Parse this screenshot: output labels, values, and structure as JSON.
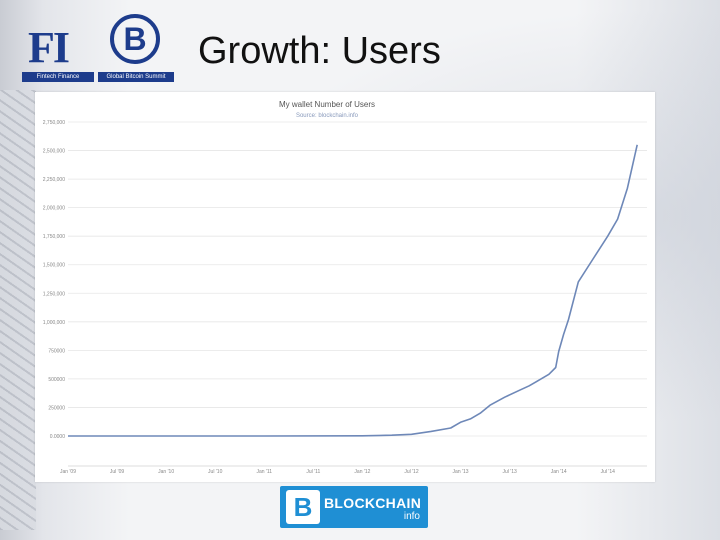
{
  "slide": {
    "title": "Growth: Users",
    "logo_left_text": "FI",
    "logo_left_caption": "Fintech Finance",
    "logo_mid_symbol": "B",
    "logo_mid_caption": "Global Bitcoin Summit",
    "footer_logo_name": "BLOCKCHAIN",
    "footer_logo_sub": "info"
  },
  "chart_data": {
    "type": "line",
    "title": "My wallet Number of Users",
    "subtitle": "Source: blockchain.info",
    "xlabel": "",
    "ylabel": "",
    "y_tick_labels": [
      "0.0000",
      "250000",
      "500000",
      "750000",
      "1,000,000",
      "1,250,000",
      "1,500,000",
      "1,750,000",
      "2,000,000",
      "2,250,000",
      "2,500,000",
      "2,750,000"
    ],
    "y_tick_values": [
      0,
      250000,
      500000,
      750000,
      1000000,
      1250000,
      1500000,
      1750000,
      2000000,
      2250000,
      2500000,
      2750000
    ],
    "x_tick_labels": [
      "Jan '09",
      "Jul '09",
      "Jan '10",
      "Jul '10",
      "Jan '11",
      "Jul '11",
      "Jan '12",
      "Jul '12",
      "Jan '13",
      "Jul '13",
      "Jan '14",
      "Jul '14"
    ],
    "x_tick_values": [
      2009.0,
      2009.5,
      2010.0,
      2010.5,
      2011.0,
      2011.5,
      2012.0,
      2012.5,
      2013.0,
      2013.5,
      2014.0,
      2014.5
    ],
    "xlim": [
      2009.0,
      2014.9
    ],
    "ylim": [
      0,
      2750000
    ],
    "grid": true,
    "color": "#6e88b8",
    "series": [
      {
        "x": [
          2009.0,
          2011.0,
          2012.0,
          2012.3,
          2012.5,
          2012.7,
          2012.9,
          2013.0,
          2013.1,
          2013.2,
          2013.3,
          2013.45,
          2013.6,
          2013.7,
          2013.8,
          2013.9,
          2013.97,
          2014.0,
          2014.05,
          2014.1,
          2014.2,
          2014.35,
          2014.5,
          2014.6,
          2014.7,
          2014.8
        ],
        "y": [
          0,
          0,
          2000,
          7000,
          15000,
          40000,
          70000,
          120000,
          150000,
          200000,
          270000,
          340000,
          400000,
          440000,
          490000,
          540000,
          600000,
          740000,
          890000,
          1020000,
          1350000,
          1550000,
          1750000,
          1900000,
          2170000,
          2550000
        ]
      }
    ]
  }
}
